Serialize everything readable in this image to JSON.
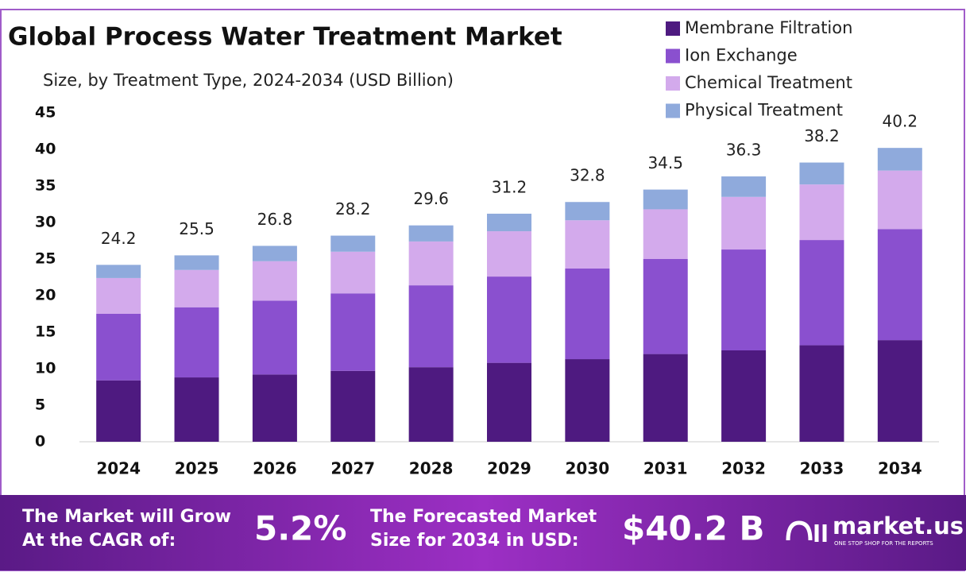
{
  "chart_data": {
    "type": "stacked-bar",
    "title": "Global Process Water Treatment Market",
    "subtitle": "Size, by Treatment Type, 2024-2034 (USD Billion)",
    "categories": [
      "2024",
      "2025",
      "2026",
      "2027",
      "2028",
      "2029",
      "2030",
      "2031",
      "2032",
      "2033",
      "2034"
    ],
    "series": [
      {
        "name": "Membrane Filtration",
        "color": "#4e1a80",
        "values": [
          8.4,
          8.8,
          9.2,
          9.7,
          10.2,
          10.8,
          11.3,
          12.0,
          12.5,
          13.2,
          13.9
        ]
      },
      {
        "name": "Ion Exchange",
        "color": "#8a50cf",
        "values": [
          9.1,
          9.6,
          10.1,
          10.6,
          11.2,
          11.8,
          12.4,
          13.0,
          13.8,
          14.4,
          15.2
        ]
      },
      {
        "name": "Chemical Treatment",
        "color": "#d3aaec",
        "values": [
          4.9,
          5.1,
          5.4,
          5.7,
          6.0,
          6.2,
          6.6,
          6.8,
          7.2,
          7.6,
          8.0
        ]
      },
      {
        "name": "Physical Treatment",
        "color": "#8faadc",
        "values": [
          1.8,
          2.0,
          2.1,
          2.2,
          2.2,
          2.4,
          2.5,
          2.7,
          2.8,
          3.0,
          3.1
        ]
      }
    ],
    "totals": [
      24.2,
      25.5,
      26.8,
      28.2,
      29.6,
      31.2,
      32.8,
      34.5,
      36.3,
      38.2,
      40.2
    ],
    "ylim": [
      0,
      45
    ],
    "yticks": [
      0,
      5,
      10,
      15,
      20,
      25,
      30,
      35,
      40,
      45
    ],
    "grid": false
  },
  "footer": {
    "cagr_text": "The Market will Grow At the CAGR of:",
    "cagr_value": "5.2%",
    "forecast_text": "The Forecasted Market Size for 2034 in USD:",
    "forecast_value": "$40.2 B",
    "brand": "market.us",
    "tagline": "ONE STOP SHOP FOR THE REPORTS"
  }
}
